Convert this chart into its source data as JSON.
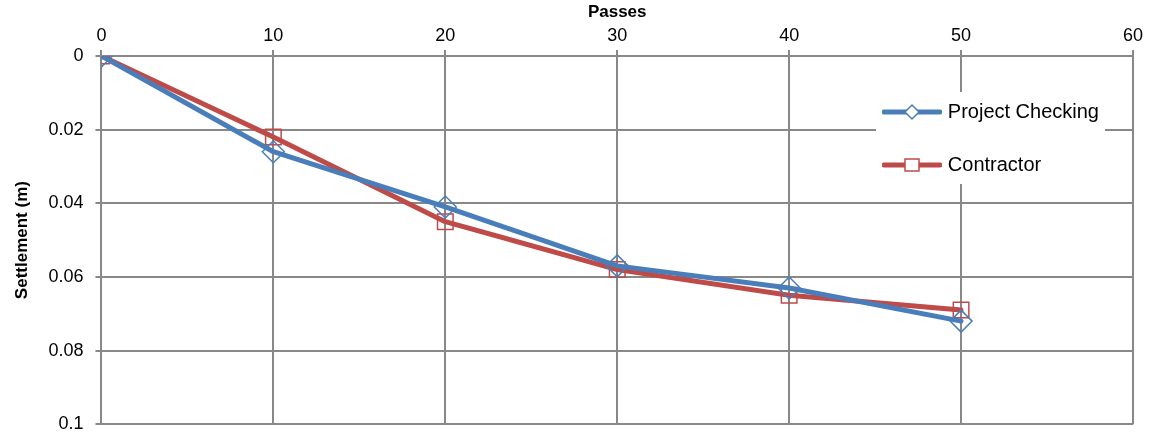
{
  "chart_data": {
    "type": "line",
    "xlabel": "Passes",
    "ylabel": "Settlement (m)",
    "x": [
      0,
      10,
      20,
      30,
      40,
      50
    ],
    "series": [
      {
        "name": "Project Checking",
        "color": "#4a7ebb",
        "marker": "diamond",
        "values": [
          0,
          0.026,
          0.041,
          0.057,
          0.063,
          0.072
        ]
      },
      {
        "name": "Contractor",
        "color": "#be4b48",
        "marker": "square",
        "values": [
          0,
          0.022,
          0.045,
          0.058,
          0.065,
          0.069
        ]
      }
    ],
    "xlim": [
      0,
      60
    ],
    "xticks": [
      0,
      10,
      20,
      30,
      40,
      50,
      60
    ],
    "ylim": [
      0.1,
      0
    ],
    "yticks": [
      0,
      0.02,
      0.04,
      0.06,
      0.08,
      0.1
    ],
    "grid": true,
    "legend": "top right",
    "line_style": "solid"
  }
}
